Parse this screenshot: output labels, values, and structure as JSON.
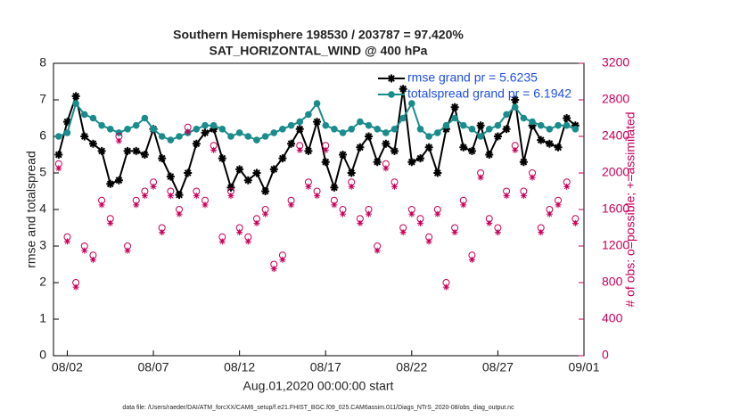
{
  "chart_data": {
    "type": "line",
    "title": "Southern Hemisphere 198530 / 203787 = 97.420%",
    "subtitle": "SAT_HORIZONTAL_WIND @ 400 hPa",
    "x_label": "Aug.01,2020 00:00:00 start",
    "y_label": "rmse and totalspread",
    "y2_label": "# of obs: o=possible; +=assimilated",
    "footnote": "data file: /Users/raeder/DAI/ATM_forcXX/CAM6_setup/f.e21.FHIST_BGC.f09_025.CAM6assim.011/Diags_NTrS_2020-08/obs_diag_output.nc",
    "x": [
      1.5,
      2,
      2.5,
      3,
      3.5,
      4,
      4.5,
      5,
      5.5,
      6,
      6.5,
      7,
      7.5,
      8,
      8.5,
      9,
      9.5,
      10,
      10.5,
      11,
      11.5,
      12,
      12.5,
      13,
      13.5,
      14,
      14.5,
      15,
      15.5,
      16,
      16.5,
      17,
      17.5,
      18,
      18.5,
      19,
      19.5,
      20,
      20.5,
      21,
      21.5,
      22,
      22.5,
      23,
      23.5,
      24,
      24.5,
      25,
      25.5,
      26,
      26.5,
      27,
      27.5,
      28,
      28.5,
      29,
      29.5,
      30,
      30.5,
      31,
      31.5
    ],
    "xlim": [
      1.2,
      32
    ],
    "xticks": [
      {
        "value": 2,
        "label": "08/02"
      },
      {
        "value": 7,
        "label": "08/07"
      },
      {
        "value": 12,
        "label": "08/12"
      },
      {
        "value": 17,
        "label": "08/17"
      },
      {
        "value": 22,
        "label": "08/22"
      },
      {
        "value": 27,
        "label": "08/27"
      },
      {
        "value": 32,
        "label": "09/01"
      }
    ],
    "ylim": [
      0,
      8
    ],
    "yticks": [
      0,
      1,
      2,
      3,
      4,
      5,
      6,
      7,
      8
    ],
    "y2lim": [
      0,
      3200
    ],
    "y2ticks": [
      0,
      400,
      800,
      1200,
      1600,
      2000,
      2400,
      2800,
      3200
    ],
    "legend": "upper right",
    "series": [
      {
        "name": "rmse grand pr = 5.6235",
        "color": "#000000",
        "marker": "star",
        "values": [
          5.5,
          6.4,
          7.1,
          6.0,
          5.8,
          5.6,
          4.7,
          4.8,
          5.6,
          5.6,
          5.5,
          6.2,
          5.4,
          4.9,
          4.4,
          5.0,
          5.8,
          6.1,
          6.2,
          5.4,
          4.6,
          5.1,
          4.8,
          5.0,
          4.5,
          5.1,
          5.4,
          5.8,
          6.2,
          5.6,
          6.4,
          5.3,
          4.6,
          5.5,
          5.0,
          5.7,
          6.0,
          5.3,
          5.8,
          5.6,
          7.3,
          5.3,
          5.4,
          5.7,
          5.0,
          6.2,
          6.8,
          5.7,
          5.6,
          6.3,
          5.5,
          6.0,
          6.2,
          7.0,
          5.3,
          6.3,
          5.9,
          5.8,
          5.7,
          6.5,
          6.3
        ]
      },
      {
        "name": "totalspread grand pr = 6.1942",
        "color": "#1a8c8c",
        "marker": "dot",
        "values": [
          6.0,
          6.1,
          6.9,
          6.6,
          6.5,
          6.3,
          6.2,
          6.1,
          6.2,
          6.3,
          6.5,
          6.2,
          6.0,
          5.9,
          6.0,
          6.1,
          6.2,
          6.3,
          6.3,
          6.2,
          6.0,
          6.1,
          6.0,
          5.9,
          6.0,
          6.1,
          6.2,
          6.3,
          6.4,
          6.6,
          6.9,
          6.3,
          6.2,
          6.1,
          6.2,
          6.4,
          6.3,
          6.2,
          6.1,
          6.2,
          6.5,
          6.9,
          6.2,
          6.0,
          6.1,
          6.3,
          6.5,
          6.3,
          6.2,
          6.0,
          6.2,
          6.3,
          6.6,
          6.8,
          6.5,
          6.4,
          6.3,
          6.2,
          6.3,
          6.3,
          6.2
        ]
      },
      {
        "color": "#c8005a",
        "marker": "circle",
        "axis": "y2",
        "values": [
          2100,
          1300,
          800,
          1200,
          1100,
          1700,
          1500,
          2400,
          1200,
          1700,
          1800,
          1900,
          1400,
          1800,
          1600,
          2500,
          1800,
          1700,
          2300,
          1300,
          1800,
          1400,
          1300,
          1500,
          1600,
          1000,
          1100,
          1700,
          2300,
          1900,
          1800,
          2300,
          1700,
          1600,
          1900,
          1500,
          1600,
          1200,
          2100,
          1900,
          1400,
          1600,
          1500,
          1300,
          1600,
          800,
          1400,
          1700,
          1100,
          2000,
          1500,
          1400,
          1800,
          2300,
          1800,
          2000,
          1400,
          1600,
          1700,
          1900,
          1500
        ]
      },
      {
        "color": "#c8005a",
        "marker": "star",
        "axis": "y2",
        "values": [
          2050,
          1250,
          750,
          1150,
          1050,
          1650,
          1450,
          2350,
          1150,
          1650,
          1750,
          1850,
          1350,
          1750,
          1550,
          2450,
          1750,
          1650,
          2250,
          1250,
          1750,
          1350,
          1250,
          1450,
          1550,
          950,
          1050,
          1650,
          2250,
          1850,
          1750,
          2250,
          1650,
          1550,
          1850,
          1450,
          1550,
          1150,
          2050,
          1850,
          1350,
          1550,
          1450,
          1250,
          1550,
          750,
          1350,
          1650,
          1050,
          1950,
          1450,
          1350,
          1750,
          2250,
          1750,
          1950,
          1350,
          1550,
          1650,
          1850,
          1450
        ]
      }
    ]
  }
}
